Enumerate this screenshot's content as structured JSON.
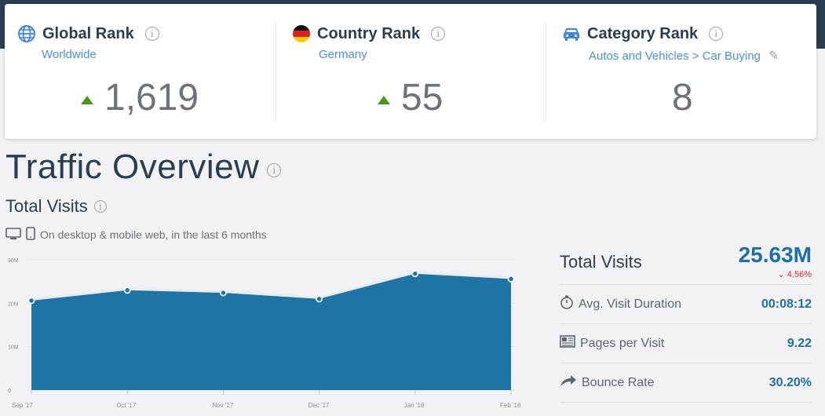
{
  "ranks": {
    "global": {
      "title": "Global Rank",
      "sub": "Worldwide",
      "value": "1,619",
      "trend": "up"
    },
    "country": {
      "title": "Country Rank",
      "sub": "Germany",
      "value": "55",
      "trend": "up"
    },
    "category": {
      "title": "Category Rank",
      "sub": "Autos and Vehicles > Car Buying",
      "value": "8"
    }
  },
  "overview": {
    "title": "Traffic Overview",
    "visits_title": "Total Visits",
    "device_note": "On desktop & mobile web, in the last 6 months"
  },
  "metrics": {
    "total_visits_label": "Total Visits",
    "total_visits_value": "25.63M",
    "total_visits_change": "4.56%",
    "avg_duration_label": "Avg. Visit Duration",
    "avg_duration_value": "00:08:12",
    "pages_label": "Pages per Visit",
    "pages_value": "9.22",
    "bounce_label": "Bounce Rate",
    "bounce_value": "30.20%"
  },
  "colors": {
    "accent": "#1d6fa5",
    "area": "#1f74a6",
    "up": "#4a9a1a",
    "down": "#e0262c"
  },
  "chart_data": {
    "type": "area",
    "categories": [
      "Sep '17",
      "Oct '17",
      "Nov '17",
      "Dec '17",
      "Jan '18",
      "Feb '18"
    ],
    "values": [
      20.6,
      23.0,
      22.4,
      21.0,
      26.8,
      25.6
    ],
    "y_ticks": [
      "0",
      "10M",
      "20M",
      "30M"
    ],
    "ylim": [
      0,
      30
    ],
    "grid": true
  }
}
